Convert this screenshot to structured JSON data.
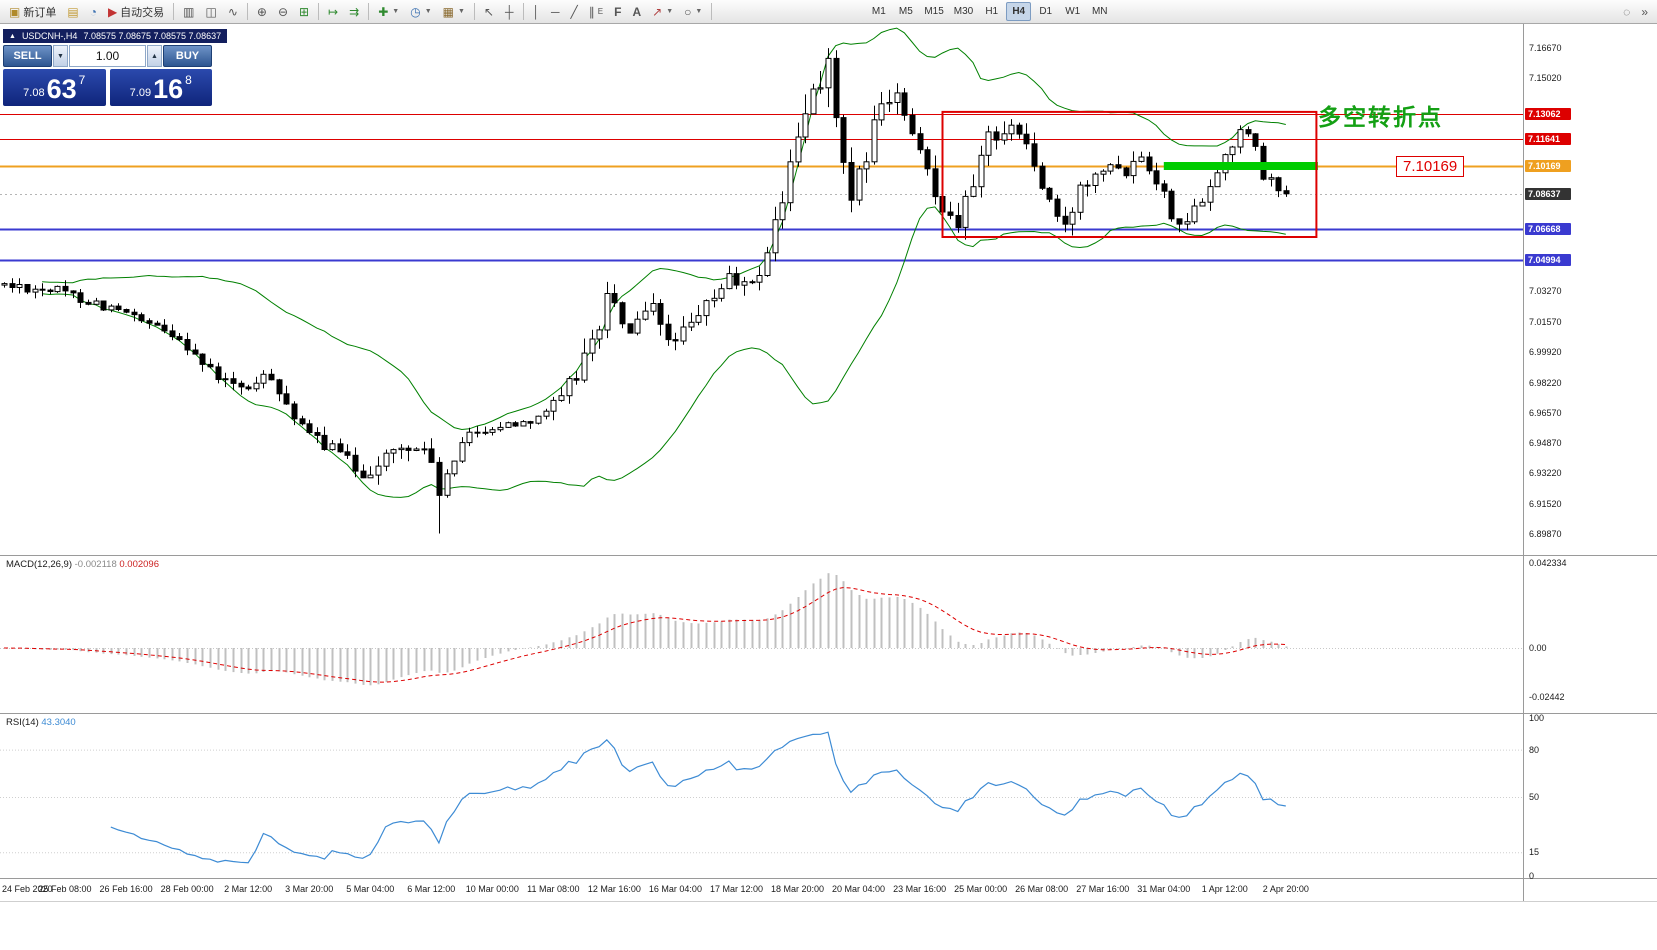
{
  "toolbar": {
    "new_order": "新订单",
    "auto_trading": "自动交易",
    "timeframes": [
      "M1",
      "M5",
      "M15",
      "M30",
      "H1",
      "H4",
      "D1",
      "W1",
      "MN"
    ],
    "active_timeframe": "H4"
  },
  "symbol_bar": {
    "symbol": "USDCNH-,H4",
    "ohlc": "7.08575 7.08675 7.08575 7.08637"
  },
  "trade_panel": {
    "sell_label": "SELL",
    "buy_label": "BUY",
    "volume": "1.00",
    "sell_price_main": "7.08",
    "sell_price_big": "63",
    "sell_price_sup": "7",
    "buy_price_main": "7.09",
    "buy_price_big": "16",
    "buy_price_sup": "8"
  },
  "annotations": {
    "turning_point": "多空转折点",
    "price_callout": "7.10169"
  },
  "chart_data": {
    "type": "candlestick",
    "symbol": "USDCNH-",
    "timeframe": "H4",
    "bars": 169,
    "price_range": [
      6.887,
      7.18
    ],
    "price_path": [
      [
        0,
        7.036
      ],
      [
        7,
        7.033
      ],
      [
        15,
        7.022
      ],
      [
        19,
        7.013
      ],
      [
        23,
        7.008
      ],
      [
        27,
        6.988
      ],
      [
        31,
        6.978
      ],
      [
        35,
        6.986
      ],
      [
        39,
        6.956
      ],
      [
        43,
        6.946
      ],
      [
        47,
        6.932
      ],
      [
        51,
        6.944
      ],
      [
        55,
        6.947
      ],
      [
        57,
        6.922
      ],
      [
        61,
        6.955
      ],
      [
        65,
        6.958
      ],
      [
        69,
        6.962
      ],
      [
        73,
        6.972
      ],
      [
        77,
        7.004
      ],
      [
        79,
        7.028
      ],
      [
        82,
        7.01
      ],
      [
        85,
        7.022
      ],
      [
        87,
        7.006
      ],
      [
        90,
        7.012
      ],
      [
        93,
        7.03
      ],
      [
        95,
        7.04
      ],
      [
        98,
        7.034
      ],
      [
        100,
        7.055
      ],
      [
        103,
        7.1
      ],
      [
        106,
        7.145
      ],
      [
        108,
        7.158
      ],
      [
        110,
        7.1
      ],
      [
        111,
        7.076
      ],
      [
        113,
        7.11
      ],
      [
        115,
        7.134
      ],
      [
        117,
        7.14
      ],
      [
        119,
        7.116
      ],
      [
        121,
        7.1
      ],
      [
        123,
        7.08
      ],
      [
        125,
        7.072
      ],
      [
        127,
        7.09
      ],
      [
        129,
        7.118
      ],
      [
        132,
        7.124
      ],
      [
        134,
        7.114
      ],
      [
        136,
        7.09
      ],
      [
        138,
        7.073
      ],
      [
        139,
        7.066
      ],
      [
        141,
        7.09
      ],
      [
        143,
        7.1
      ],
      [
        145,
        7.105
      ],
      [
        147,
        7.1
      ],
      [
        149,
        7.11
      ],
      [
        151,
        7.095
      ],
      [
        153,
        7.076
      ],
      [
        155,
        7.07
      ],
      [
        157,
        7.085
      ],
      [
        159,
        7.1
      ],
      [
        161,
        7.114
      ],
      [
        162,
        7.124
      ],
      [
        164,
        7.11
      ],
      [
        165,
        7.096
      ],
      [
        167,
        7.089
      ],
      [
        168,
        7.0864
      ]
    ],
    "volatility_path": [
      [
        0,
        0.005
      ],
      [
        20,
        0.006
      ],
      [
        40,
        0.007
      ],
      [
        56,
        0.009
      ],
      [
        60,
        0.005
      ],
      [
        70,
        0.005
      ],
      [
        76,
        0.012
      ],
      [
        86,
        0.009
      ],
      [
        96,
        0.008
      ],
      [
        100,
        0.012
      ],
      [
        104,
        0.016
      ],
      [
        110,
        0.016
      ],
      [
        116,
        0.012
      ],
      [
        124,
        0.01
      ],
      [
        132,
        0.01
      ],
      [
        140,
        0.009
      ],
      [
        150,
        0.008
      ],
      [
        160,
        0.008
      ],
      [
        168,
        0.006
      ]
    ],
    "pins": [
      {
        "bar": 57,
        "low": 6.899
      },
      {
        "bar": 108,
        "high": 7.1667
      },
      {
        "bar": 168,
        "close": 7.08637
      }
    ],
    "bollinger": {
      "period": 20,
      "deviation": 2,
      "color": "#008000"
    },
    "levels": [
      {
        "price": 7.13062,
        "label": "7.13062",
        "color": "#dd0000",
        "width": 1
      },
      {
        "price": 7.11641,
        "label": "7.11641",
        "color": "#dd0000",
        "width": 1
      },
      {
        "price": 7.10169,
        "label": "7.10169",
        "color": "#efa020",
        "width": 2
      },
      {
        "price": 7.08637,
        "label": "7.08637",
        "color": "#3a3a3a",
        "current": true
      },
      {
        "price": 7.06668,
        "label": "7.06668",
        "color": "#3a3ad0",
        "width": 2
      },
      {
        "price": 7.04994,
        "label": "7.04994",
        "color": "#3a3ad0",
        "width": 2
      }
    ],
    "y_axis_labels": [
      "7.16670",
      "7.15020",
      "7.03270",
      "7.01570",
      "6.99920",
      "6.98220",
      "6.96570",
      "6.94870",
      "6.93220",
      "6.91520",
      "6.89870"
    ],
    "x_axis_labels": [
      "24 Feb 2020",
      "25 Feb 08:00",
      "26 Feb 16:00",
      "28 Feb 00:00",
      "2 Mar 12:00",
      "3 Mar 20:00",
      "5 Mar 04:00",
      "6 Mar 12:00",
      "10 Mar 00:00",
      "11 Mar 08:00",
      "12 Mar 16:00",
      "16 Mar 04:00",
      "17 Mar 12:00",
      "18 Mar 20:00",
      "20 Mar 04:00",
      "23 Mar 16:00",
      "25 Mar 00:00",
      "26 Mar 08:00",
      "27 Mar 16:00",
      "31 Mar 04:00",
      "1 Apr 12:00",
      "2 Apr 20:00"
    ],
    "highlight_zone": {
      "bar_start": 152,
      "bar_end": 172.2,
      "price": 7.10169,
      "color": "#00cc00"
    },
    "red_box": {
      "bar_start": 123,
      "bar_end": 172,
      "price_top": 7.1315,
      "price_bottom": 7.0625,
      "color": "#dd0000"
    }
  },
  "macd": {
    "name": "MACD(12,26,9)",
    "value_main": "-0.002118",
    "value_signal": "0.002096",
    "fast": 12,
    "slow": 26,
    "signal": 9,
    "axis_labels": [
      "0.042334",
      "0.00",
      "-0.02442"
    ]
  },
  "rsi": {
    "name": "RSI(14)",
    "value": "43.3040",
    "period": 14,
    "levels": [
      80,
      50,
      15
    ],
    "axis_labels": [
      "100",
      "80",
      "50",
      "15",
      "0"
    ]
  }
}
